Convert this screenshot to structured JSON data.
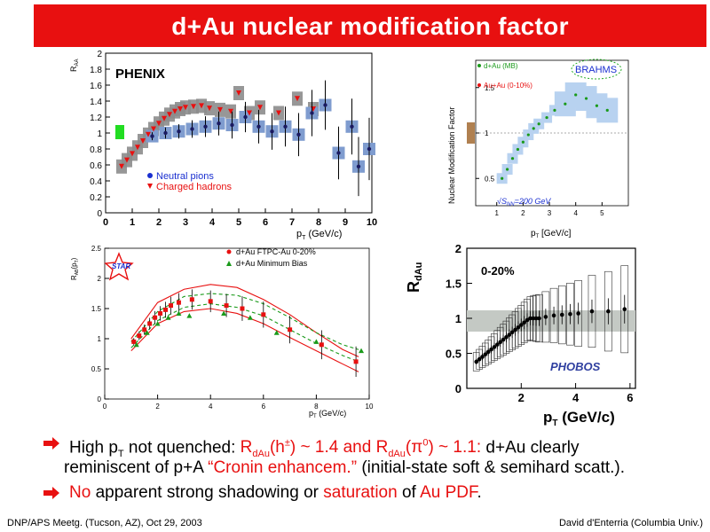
{
  "header": {
    "title": "d+Au nuclear modification factor"
  },
  "panels": {
    "phenix": {
      "logo": "PHENIX",
      "y_label": "R",
      "y_label_sub": "AA",
      "x_label": "p",
      "x_label_sub": "T",
      "x_label_unit": " (GeV/c)",
      "legend_pi0": "Neutral pions",
      "legend_charged": "Charged hadrons",
      "x_ticks": [
        "0",
        "1",
        "2",
        "3",
        "4",
        "5",
        "6",
        "7",
        "8",
        "9",
        "10"
      ],
      "y_ticks": [
        "0",
        "0.2",
        "0.4",
        "0.6",
        "0.8",
        "1",
        "1.2",
        "1.4",
        "1.6",
        "1.8",
        "2"
      ]
    },
    "brahms": {
      "logo": "BRAHMS",
      "y_label": "Nuclear Modification Factor",
      "legend_dau": "d+Au (MB)",
      "legend_auau": "Au+Au (0-10%)",
      "energy": "√S",
      "energy_sub": "NN",
      "energy_val": "=200 GeV",
      "x_label": "p",
      "x_label_sub": "T",
      "x_label_unit": " [GeV/c]",
      "x_ticks": [
        "1",
        "2",
        "3",
        "4",
        "5"
      ],
      "y_ticks": [
        "0.5",
        "1",
        "1.5"
      ]
    },
    "star": {
      "logo": "STAR",
      "y_label": "R",
      "y_label_sub": "AB",
      "y_label_paren": "(p",
      "y_label_paren_sub": "T",
      "y_label_close": ")",
      "legend_central": "d+Au FTPC-Au 0-20%",
      "legend_mb": "d+Au Minimum Bias",
      "x_label": "p",
      "x_label_sub": "T",
      "x_label_unit": " (GeV/c)",
      "x_ticks": [
        "0",
        "2",
        "4",
        "6",
        "8",
        "10"
      ],
      "y_ticks": [
        "0",
        "0.5",
        "1",
        "1.5",
        "2",
        "2.5"
      ]
    },
    "phobos": {
      "logo": "PHOBOS",
      "centrality": "0-20%",
      "y_label": "R",
      "y_label_sub": "dAu",
      "x_label": "p",
      "x_label_sub": "T",
      "x_label_unit": " (GeV/c)",
      "x_ticks": [
        "2",
        "4",
        "6"
      ],
      "y_ticks": [
        "0",
        "0.5",
        "1",
        "1.5",
        "2"
      ]
    }
  },
  "bullets": {
    "b1_pre": "High p",
    "b1_sub": "T",
    "b1_mid": " not quenched: ",
    "b1_r1": "R",
    "b1_r1_sub": "dAu",
    "b1_r1_rest": "(h",
    "b1_r1_sup": "±",
    "b1_r1_end": ") ~ 1.4 and ",
    "b1_r2": "R",
    "b1_r2_sub": "dAu",
    "b1_r2_rest": "(π",
    "b1_r2_sup": "0",
    "b1_r2_end": ") ~ 1.1:",
    "b1_post": "  d+Au clearly",
    "b1_line2_pre": "reminiscent of p+A ",
    "b1_line2_red": "“Cronin enhancem.”",
    "b1_line2_post": " (initial-state soft & semihard scatt.).",
    "b2_red1": "No",
    "b2_mid1": " apparent strong shadowing or ",
    "b2_red2": "saturation",
    "b2_mid2": " of ",
    "b2_red3": "Au PDF",
    "b2_end": "."
  },
  "footer": {
    "left": "DNP/APS Meetg. (Tucson, AZ), Oct 29, 2003",
    "right": "David d'Enterria (Columbia Univ.)"
  },
  "colors": {
    "title_bg": "#e81010",
    "accent_red": "#e81010",
    "pi0_blue": "#1a2fd0",
    "box_blue": "#7f9ccf",
    "box_gray": "#8c8c8c"
  }
}
